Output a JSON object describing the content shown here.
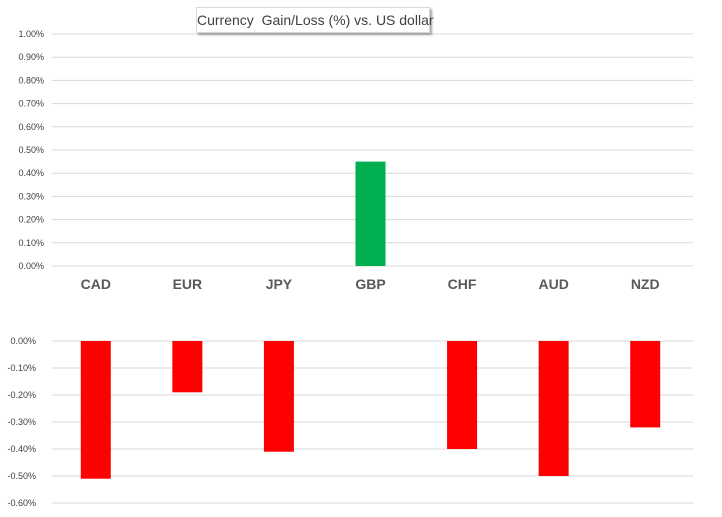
{
  "chart_data": {
    "type": "bar",
    "title": "Currency  Gain/Loss (%) vs. US dollar",
    "categories": [
      "CAD",
      "EUR",
      "JPY",
      "GBP",
      "CHF",
      "AUD",
      "NZD"
    ],
    "values": [
      -0.51,
      -0.19,
      -0.41,
      0.45,
      -0.4,
      -0.5,
      -0.32
    ],
    "unit": "%",
    "gain_axis": {
      "ylim": [
        0.0,
        1.0
      ],
      "ticks": [
        "0.00%",
        "0.10%",
        "0.20%",
        "0.30%",
        "0.40%",
        "0.50%",
        "0.60%",
        "0.70%",
        "0.80%",
        "0.90%",
        "1.00%"
      ]
    },
    "loss_axis": {
      "ylim": [
        -0.6,
        0.0
      ],
      "ticks": [
        "0.00%",
        "-0.10%",
        "-0.20%",
        "-0.30%",
        "-0.40%",
        "-0.50%",
        "-0.60%"
      ]
    },
    "grid": true,
    "colors": {
      "gain": "#00b050",
      "loss": "#ff0000",
      "grid": "#d9d9d9",
      "tick_text": "#404040",
      "category_text": "#595959"
    }
  }
}
